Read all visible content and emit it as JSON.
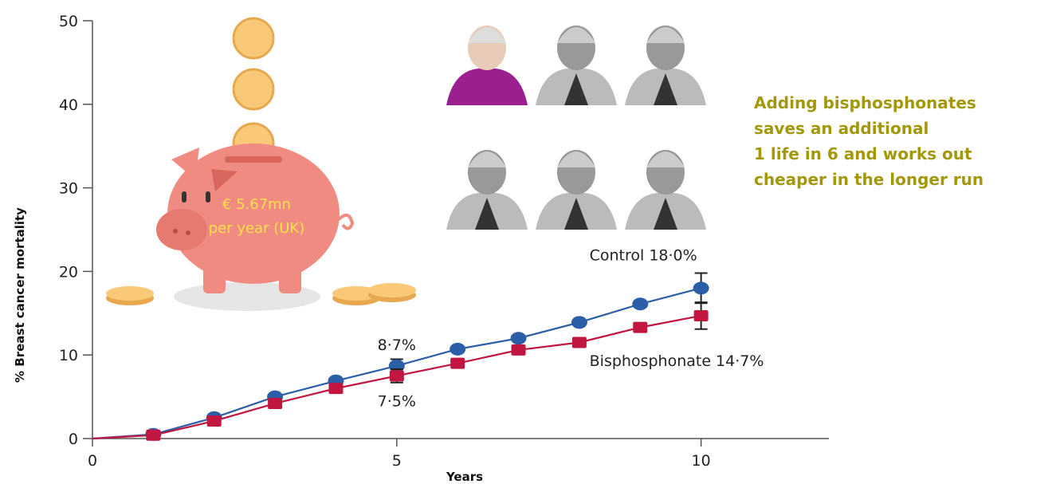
{
  "chart_data": {
    "type": "line",
    "y_label": "% Breast cancer mortality",
    "x_label": "Years",
    "x": [
      0,
      1,
      2,
      3,
      4,
      5,
      6,
      7,
      8,
      9,
      10
    ],
    "xlim": [
      0,
      12.1
    ],
    "xticks": [
      0,
      5,
      10
    ],
    "ylim": [
      0,
      50
    ],
    "yticks": [
      0,
      10,
      20,
      30,
      40,
      50
    ],
    "series": [
      {
        "name": "Control",
        "color": "#2a5fa8",
        "marker": "circle",
        "values": [
          0,
          0.5,
          2.5,
          5.0,
          6.9,
          8.7,
          10.7,
          12.0,
          13.9,
          16.1,
          18.0
        ],
        "errors": [
          null,
          null,
          null,
          null,
          null,
          0.8,
          null,
          null,
          null,
          null,
          1.8
        ],
        "value_labels": [
          null,
          null,
          null,
          null,
          null,
          "8·7%",
          null,
          null,
          null,
          null,
          "18·0%"
        ]
      },
      {
        "name": "Bisphosphonate",
        "color": "#c0163f",
        "marker": "square",
        "values": [
          0,
          0.4,
          2.1,
          4.2,
          6.0,
          7.5,
          9.0,
          10.6,
          11.5,
          13.3,
          14.7
        ],
        "errors": [
          null,
          null,
          null,
          null,
          null,
          0.8,
          null,
          null,
          null,
          null,
          1.6
        ],
        "value_labels": [
          null,
          null,
          null,
          null,
          null,
          "7·5%",
          null,
          null,
          null,
          null,
          "14·7%"
        ]
      }
    ],
    "piggy_label": [
      "€ 5.67mn",
      "per year (UK)"
    ],
    "callout": [
      "Adding bisphosphonates",
      "saves an additional",
      "1 life in 6 and works out",
      "cheaper in the longer run"
    ]
  }
}
